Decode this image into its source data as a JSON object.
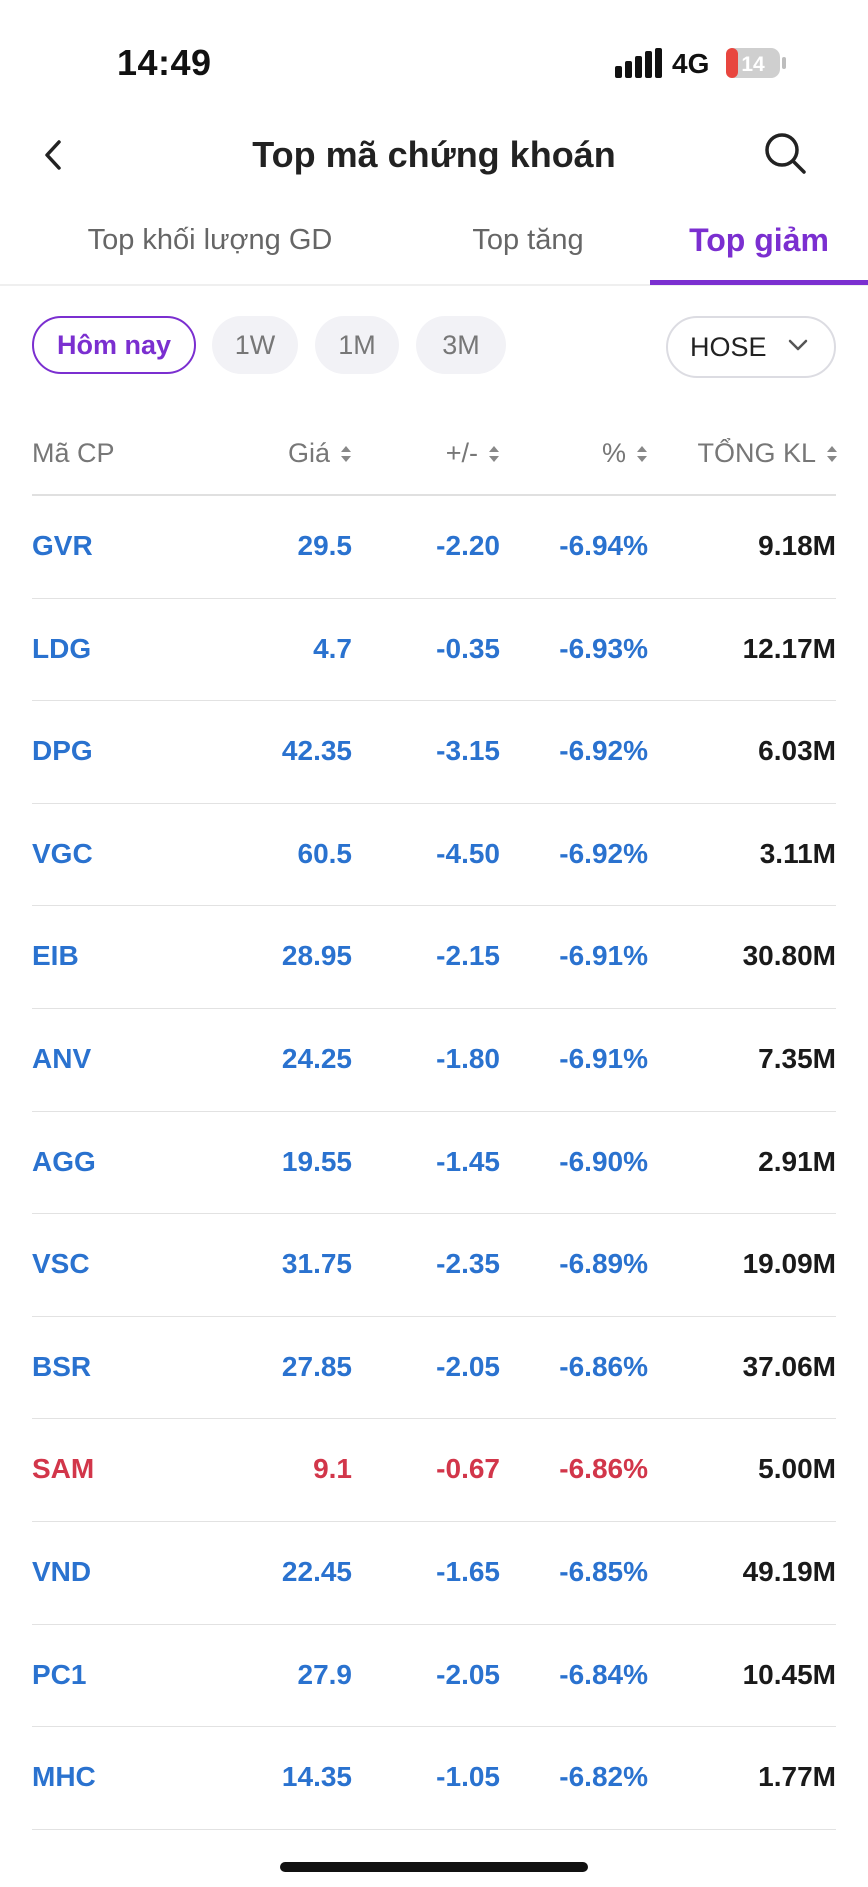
{
  "status_bar": {
    "time": "14:49",
    "network": "4G",
    "battery": "14"
  },
  "header": {
    "title": "Top mã chứng khoán"
  },
  "tabs": [
    {
      "label": "Top khối lượng GD",
      "active": false
    },
    {
      "label": "Top tăng",
      "active": false
    },
    {
      "label": "Top giảm",
      "active": true
    }
  ],
  "filters": {
    "periods": [
      {
        "label": "Hôm nay",
        "active": true
      },
      {
        "label": "1W",
        "active": false
      },
      {
        "label": "1M",
        "active": false
      },
      {
        "label": "3M",
        "active": false
      }
    ],
    "exchange": "HOSE"
  },
  "table": {
    "columns": [
      "Mã CP",
      "Giá",
      "+/-",
      "%",
      "TỔNG KL"
    ],
    "rows": [
      {
        "code": "GVR",
        "price": "29.5",
        "change": "-2.20",
        "pct": "-6.94%",
        "volume": "9.18M",
        "color": "blue"
      },
      {
        "code": "LDG",
        "price": "4.7",
        "change": "-0.35",
        "pct": "-6.93%",
        "volume": "12.17M",
        "color": "blue"
      },
      {
        "code": "DPG",
        "price": "42.35",
        "change": "-3.15",
        "pct": "-6.92%",
        "volume": "6.03M",
        "color": "blue"
      },
      {
        "code": "VGC",
        "price": "60.5",
        "change": "-4.50",
        "pct": "-6.92%",
        "volume": "3.11M",
        "color": "blue"
      },
      {
        "code": "EIB",
        "price": "28.95",
        "change": "-2.15",
        "pct": "-6.91%",
        "volume": "30.80M",
        "color": "blue"
      },
      {
        "code": "ANV",
        "price": "24.25",
        "change": "-1.80",
        "pct": "-6.91%",
        "volume": "7.35M",
        "color": "blue"
      },
      {
        "code": "AGG",
        "price": "19.55",
        "change": "-1.45",
        "pct": "-6.90%",
        "volume": "2.91M",
        "color": "blue"
      },
      {
        "code": "VSC",
        "price": "31.75",
        "change": "-2.35",
        "pct": "-6.89%",
        "volume": "19.09M",
        "color": "blue"
      },
      {
        "code": "BSR",
        "price": "27.85",
        "change": "-2.05",
        "pct": "-6.86%",
        "volume": "37.06M",
        "color": "blue"
      },
      {
        "code": "SAM",
        "price": "9.1",
        "change": "-0.67",
        "pct": "-6.86%",
        "volume": "5.00M",
        "color": "red"
      },
      {
        "code": "VND",
        "price": "22.45",
        "change": "-1.65",
        "pct": "-6.85%",
        "volume": "49.19M",
        "color": "blue"
      },
      {
        "code": "PC1",
        "price": "27.9",
        "change": "-2.05",
        "pct": "-6.84%",
        "volume": "10.45M",
        "color": "blue"
      },
      {
        "code": "MHC",
        "price": "14.35",
        "change": "-1.05",
        "pct": "-6.82%",
        "volume": "1.77M",
        "color": "blue"
      }
    ]
  },
  "colors": {
    "accent": "#7b2fd0",
    "down_blue": "#2a72cf",
    "down_red": "#d2364a"
  }
}
